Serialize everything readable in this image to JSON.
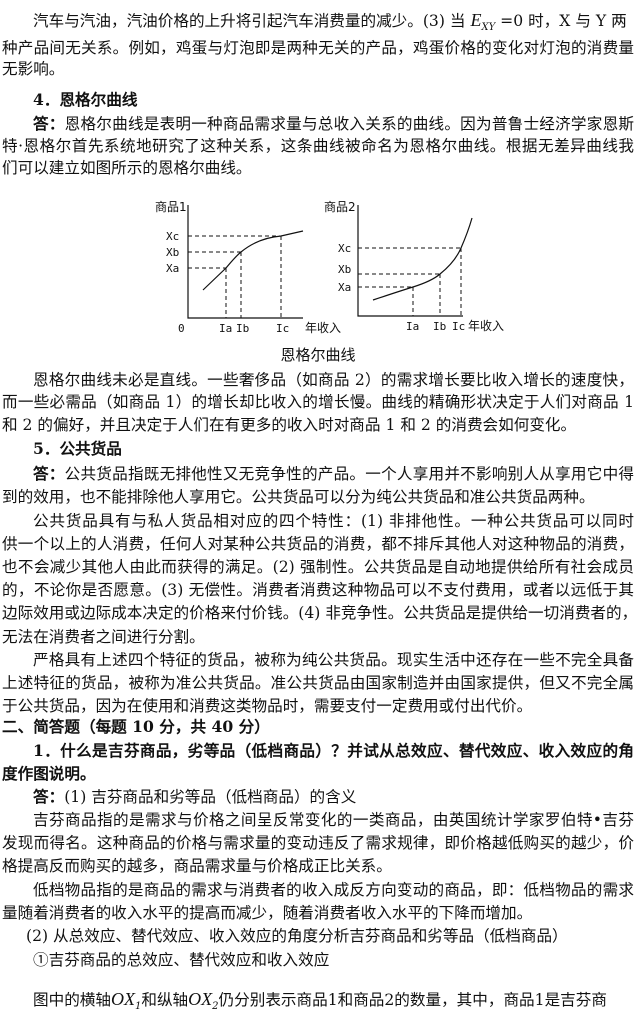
{
  "lines": [
    {
      "pre": "汽车与汽油，汽油价格的上升将引起汽车消费量的减少。(3) 当",
      "var": "E",
      "sub": "XY",
      "post": "=0 时，X 与 Y 两"
    },
    "种产品间无关系。例如，鸡蛋与灯泡即是两种无关的产品，鸡蛋价格的变化对灯泡的消费量",
    "无影响。",
    "4．恩格尔曲线",
    {
      "lead": "答：",
      "text": "恩格尔曲线是表明一种商品需求量与总收入关系的曲线。因为普鲁士经济学家恩斯"
    },
    "特·恩格尔首先系统地研究了这种关系，这条曲线被命名为恩格尔曲线。根据无差异曲线我",
    "们可以建立如图所示的恩格尔曲线。",
    "恩格尔曲线未必是直线。一些奢侈品（如商品 2）的需求增长要比收入增长的速度快，",
    "而一些必需品（如商品 1）的增长却比收入的增长慢。曲线的精确形状决定于人们对商品 1",
    "和 2 的偏好，并且决定于人们在有更多的收入时对商品 1 和 2 的消费会如何变化。",
    "5．公共货品",
    {
      "lead": "答：",
      "text": "公共货品指既无排他性又无竞争性的产品。一个人享用并不影响别人从享用它中得"
    },
    "到的效用，也不能排除他人享用它。公共货品可以分为纯公共货品和准公共货品两种。",
    "公共货品具有与私人货品相对应的四个特性：(1) 非排他性。一种公共货品可以同时",
    "供一个以上的人消费，任何人对某种公共货品的消费，都不排斥其他人对这种物品的消费，",
    "也不会减少其他人由此而获得的满足。(2) 强制性。公共货品是自动地提供给所有社会成员",
    "的，不论你是否愿意。(3) 无偿性。消费者消费这种物品可以不支付费用，或者以远低于其",
    "边际效用或边际成本决定的价格来付价钱。(4) 非竞争性。公共货品是提供给一切消费者的，",
    "无法在消费者之间进行分割。",
    "严格具有上述四个特征的货品，被称为纯公共货品。现实生活中还存在一些不完全具备",
    "上述特征的货品，被称为准公共货品。准公共货品由国家制造并由国家提供，但又不完全属",
    "于公共货品，因为在使用和消费这类物品时，需要支付一定费用或付出代价。",
    "二、简答题（每题 10 分，共 40 分）",
    "1．什么是吉芬商品，劣等品（低档商品）？并试从总效应、替代效应、收入效应的角",
    "度作图说明。",
    {
      "lead": "答：",
      "text": "(1) 吉芬商品和劣等品（低档商品）的含义"
    },
    "吉芬商品指的是需求与价格之间呈反常变化的一类商品，由英国统计学家罗伯特•吉芬",
    "发现而得名。这种商品的价格与需求量的变动违反了需求规律，即价格越低购买的越少，价",
    "格提高反而购买的越多，商品需求量与价格成正比关系。",
    "低档物品指的是商品的需求与消费者的收入成反方向变动的商品，即：低档物品的需求",
    "量随着消费者的收入水平的提高而减少，随着消费者收入水平的下降而增加。",
    "(2) 从总效应、替代效应、收入效应的角度分析吉芬商品和劣等品（低档商品）",
    "①吉芬商品的总效应、替代效应和收入效应",
    {
      "pre": "图中的横轴",
      "v1": "OX",
      "s1": "1",
      "mid": "和纵轴",
      "v2": "OX",
      "s2": "2",
      "post": "仍分别表示商品1和商品2的数量，其中，商品1是吉芬商"
    }
  ],
  "figure": {
    "caption": "恩格尔曲线",
    "left": {
      "ylabel": "商品1",
      "xlabel": "年收入",
      "origin": "0",
      "yticks": [
        "Xc",
        "Xb",
        "Xa"
      ],
      "xticks": [
        "Ia",
        "Ib",
        "Ic"
      ]
    },
    "right": {
      "ylabel": "商品2",
      "xlabel": "年收入",
      "yticks": [
        "Xc",
        "Xb",
        "Xa"
      ],
      "xticks": [
        "Ia",
        "Ib",
        "Ic"
      ]
    }
  }
}
